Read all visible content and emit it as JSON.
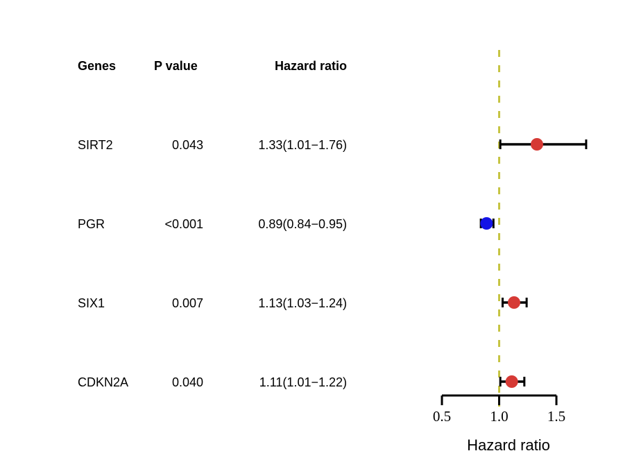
{
  "chart_data": {
    "type": "forest",
    "table": {
      "headers": [
        "Genes",
        "P value",
        "Hazard ratio"
      ],
      "rows": [
        {
          "gene": "SIRT2",
          "p_value": "0.043",
          "hr_text": "1.33(1.01−1.76)"
        },
        {
          "gene": "PGR",
          "p_value": "<0.001",
          "hr_text": "0.89(0.84−0.95)"
        },
        {
          "gene": "SIX1",
          "p_value": "0.007",
          "hr_text": "1.13(1.03−1.24)"
        },
        {
          "gene": "CDKN2A",
          "p_value": "0.040",
          "hr_text": "1.11(1.01−1.22)"
        }
      ]
    },
    "points": [
      {
        "gene": "SIRT2",
        "hr": 1.33,
        "lower": 1.01,
        "upper": 1.76
      },
      {
        "gene": "PGR",
        "hr": 0.89,
        "lower": 0.84,
        "upper": 0.95
      },
      {
        "gene": "SIX1",
        "hr": 1.13,
        "lower": 1.03,
        "upper": 1.24
      },
      {
        "gene": "CDKN2A",
        "hr": 1.11,
        "lower": 1.01,
        "upper": 1.22
      }
    ],
    "xlabel": "Hazard ratio",
    "xlim": [
      0.5,
      1.5
    ],
    "xticks": [
      "0.5",
      "1.0",
      "1.5"
    ],
    "reference_line": 1.0,
    "colors": {
      "risk": "#d63a35",
      "protective": "#1414e6",
      "reference": "#c6c443",
      "ci": "#000000"
    }
  }
}
